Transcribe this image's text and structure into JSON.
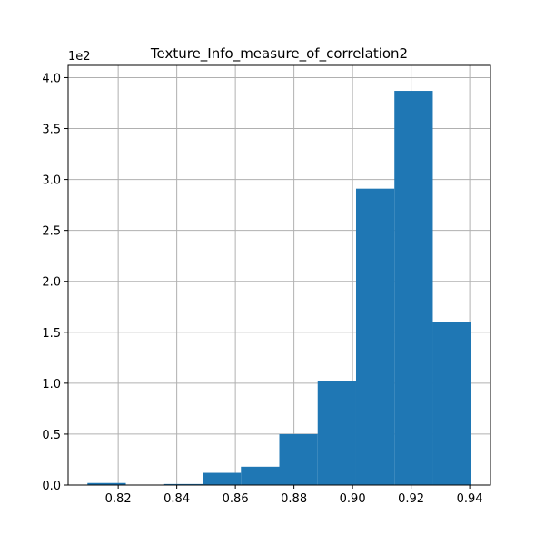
{
  "chart_data": {
    "type": "bar",
    "title": "Texture_Info_measure_of_correlation2",
    "xlabel": "",
    "ylabel": "",
    "y_offset_label": "1e2",
    "bins": [
      {
        "x0": 0.8095,
        "x1": 0.8226,
        "count": 2
      },
      {
        "x0": 0.8226,
        "x1": 0.8357,
        "count": 0
      },
      {
        "x0": 0.8357,
        "x1": 0.8488,
        "count": 1
      },
      {
        "x0": 0.8488,
        "x1": 0.8619,
        "count": 12
      },
      {
        "x0": 0.8619,
        "x1": 0.875,
        "count": 18
      },
      {
        "x0": 0.875,
        "x1": 0.8881,
        "count": 50
      },
      {
        "x0": 0.8881,
        "x1": 0.9012,
        "count": 102
      },
      {
        "x0": 0.9012,
        "x1": 0.9143,
        "count": 291
      },
      {
        "x0": 0.9143,
        "x1": 0.9274,
        "count": 387
      },
      {
        "x0": 0.9274,
        "x1": 0.9405,
        "count": 160
      }
    ],
    "xlim": [
      0.8029,
      0.9471
    ],
    "ylim": [
      0,
      412
    ],
    "x_ticks": [
      {
        "value": 0.82,
        "label": "0.82"
      },
      {
        "value": 0.84,
        "label": "0.84"
      },
      {
        "value": 0.86,
        "label": "0.86"
      },
      {
        "value": 0.88,
        "label": "0.88"
      },
      {
        "value": 0.9,
        "label": "0.90"
      },
      {
        "value": 0.92,
        "label": "0.92"
      },
      {
        "value": 0.94,
        "label": "0.94"
      }
    ],
    "y_ticks": [
      {
        "value": 0,
        "label": "0.0"
      },
      {
        "value": 50,
        "label": "0.5"
      },
      {
        "value": 100,
        "label": "1.0"
      },
      {
        "value": 150,
        "label": "1.5"
      },
      {
        "value": 200,
        "label": "2.0"
      },
      {
        "value": 250,
        "label": "2.5"
      },
      {
        "value": 300,
        "label": "3.0"
      },
      {
        "value": 350,
        "label": "3.5"
      },
      {
        "value": 400,
        "label": "4.0"
      }
    ],
    "grid": true,
    "bar_color": "#1f77b4",
    "grid_color": "#b0b0b0"
  }
}
